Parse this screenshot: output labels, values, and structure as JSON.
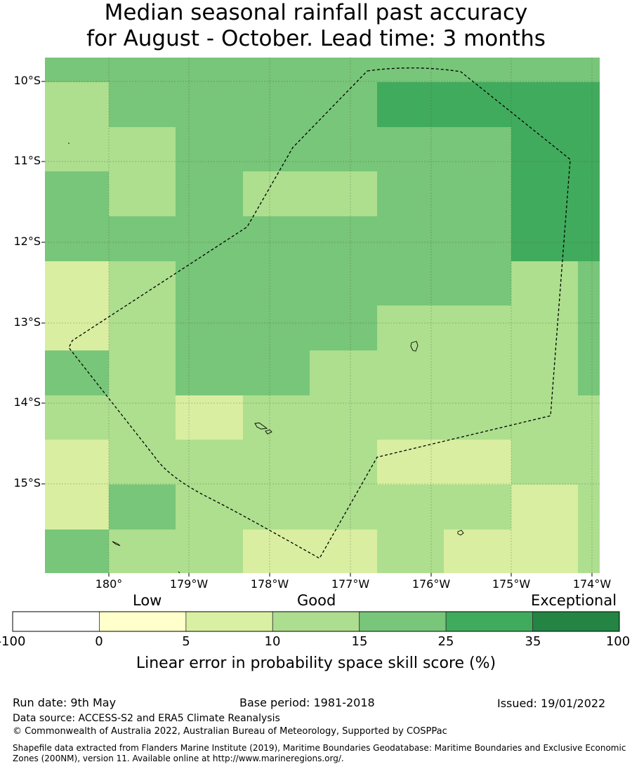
{
  "title": {
    "line1": "Median seasonal rainfall past accuracy",
    "line2": "for August - October. Lead time: 3 months"
  },
  "map": {
    "lat_labels": [
      "10°S",
      "11°S",
      "12°S",
      "13°S",
      "14°S",
      "15°S"
    ],
    "lon_labels": [
      "180°",
      "179°W",
      "178°W",
      "177°W",
      "176°W",
      "175°W",
      "174°W"
    ],
    "boundary_style": "dashed",
    "palette": {
      "c5": "#d9eea0",
      "c10": "#addf8e",
      "c15": "#78c679",
      "c25": "#41ab5d"
    }
  },
  "legend": {
    "categories": [
      "Low",
      "Good",
      "Exceptional"
    ],
    "ticks": [
      "-100",
      "0",
      "5",
      "10",
      "15",
      "25",
      "35",
      "100"
    ],
    "colors": [
      "#ffffff",
      "#ffffcc",
      "#d9f0a3",
      "#addd8e",
      "#78c679",
      "#41ab5d",
      "#238443"
    ],
    "title": "Linear error in probability space skill score (%)"
  },
  "footer": {
    "run_date": "Run date: 9th May",
    "base_period": "Base period: 1981-2018",
    "issued": "Issued: 19/01/2022",
    "data_source": "Data source: ACCESS-S2 and ERA5 Climate Reanalysis",
    "copyright": "© Commonwealth of Australia 2022, Australian Bureau of Meteorology, Supported by COSPPac",
    "shapefile_line1": "Shapefile data extracted from Flanders Marine Institute (2019), Maritime Boundaries Geodatabase: Maritime Boundaries and Exclusive Economic",
    "shapefile_line2": "Zones (200NM), version 11. Available online at http://www.marineregions.org/."
  }
}
